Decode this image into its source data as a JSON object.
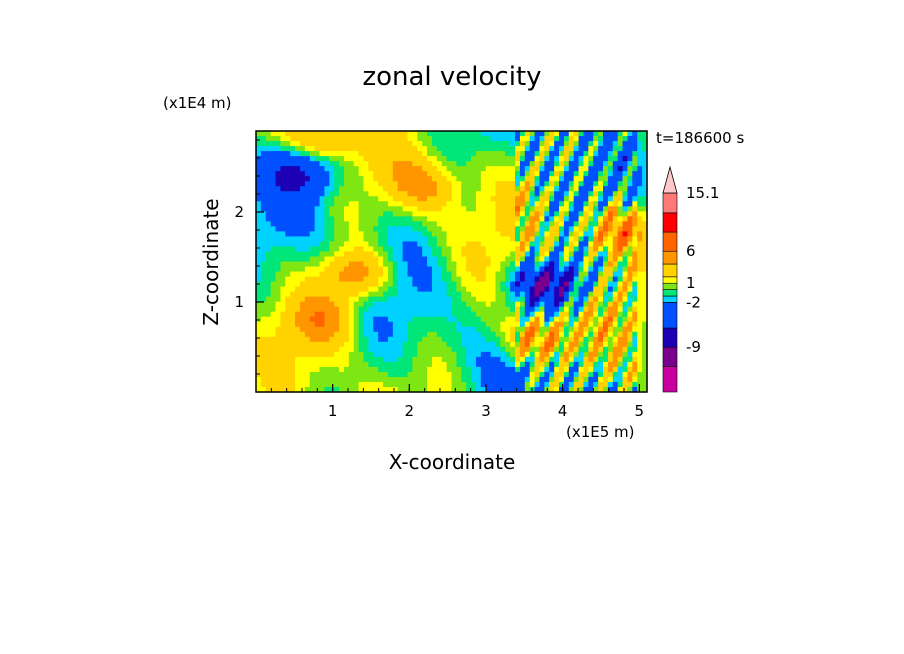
{
  "chart_data": {
    "type": "heatmap",
    "title": "zonal velocity",
    "xlabel": "X-coordinate",
    "ylabel": "Z-coordinate",
    "x_unit": "(x1E5 m)",
    "y_unit": "(x1E4 m)",
    "time_label": "t=186600 s",
    "xlim": [
      0.0,
      5.1
    ],
    "ylim": [
      0.0,
      2.9
    ],
    "x_ticks": [
      1,
      2,
      3,
      4,
      5
    ],
    "y_ticks": [
      1,
      2
    ],
    "colorbar": {
      "levels": [
        -16,
        -12,
        -9,
        -6,
        -2,
        -1,
        0,
        1,
        2,
        4,
        6,
        9,
        12,
        15.1
      ],
      "colors": [
        "#ff00b4",
        "#c800a0",
        "#78008c",
        "#1e00b4",
        "#0050ff",
        "#00d2ff",
        "#00e678",
        "#7ee612",
        "#ffff00",
        "#ffd200",
        "#ff9600",
        "#ff6400",
        "#ff0000",
        "#ff7878",
        "#ffc8c8"
      ],
      "tick_labels": [
        "15.1",
        "6",
        "1",
        "-2",
        "-9"
      ],
      "extend": "max"
    },
    "features": [
      {
        "x": 0.6,
        "z": 2.45,
        "value": -6
      },
      {
        "x": 1.3,
        "z": 1.3,
        "value": 6
      },
      {
        "x": 0.9,
        "z": 0.8,
        "value": 4
      },
      {
        "x": 3.85,
        "z": 1.2,
        "value": -9
      },
      {
        "x": 3.7,
        "z": 0.6,
        "value": 6
      },
      {
        "x": 2.7,
        "z": 1.0,
        "value": 0
      },
      {
        "x": 0.8,
        "z": 2.8,
        "value": 5
      },
      {
        "x": 2.2,
        "z": 2.3,
        "value": 4
      },
      {
        "x": 4.7,
        "z": 1.8,
        "value": 6
      }
    ]
  }
}
